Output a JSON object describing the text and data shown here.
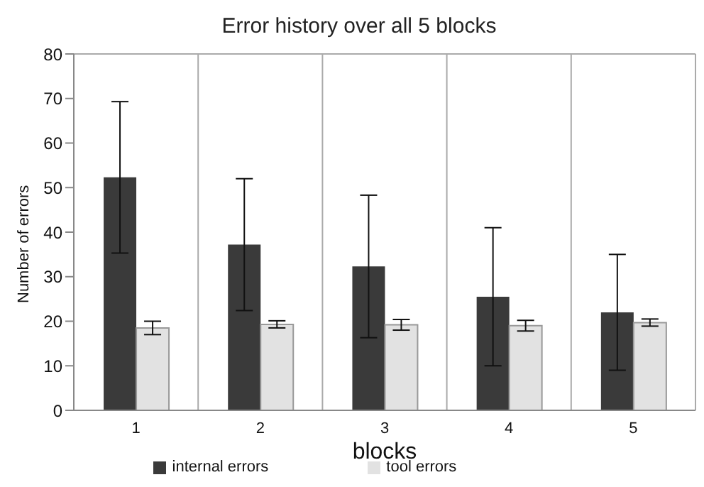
{
  "chart_data": {
    "type": "bar",
    "title": "Error history over all 5 blocks",
    "xlabel": "blocks",
    "ylabel": "Number of errors",
    "categories": [
      "1",
      "2",
      "3",
      "4",
      "5"
    ],
    "series": [
      {
        "name": "internal errors",
        "color": "#3a3a3a",
        "values": [
          52.3,
          37.2,
          32.3,
          25.5,
          22
        ],
        "errors": [
          17,
          14.8,
          16,
          15.5,
          13
        ]
      },
      {
        "name": "tool errors",
        "color": "#e2e2e2",
        "values": [
          18.5,
          19.3,
          19.2,
          19,
          19.7
        ],
        "errors": [
          1.5,
          0.8,
          1.2,
          1.2,
          0.8
        ]
      }
    ],
    "ylim": [
      0,
      80
    ],
    "yticks": [
      0,
      10,
      20,
      30,
      40,
      50,
      60,
      70,
      80
    ],
    "grid": true,
    "legend": "bottom"
  }
}
